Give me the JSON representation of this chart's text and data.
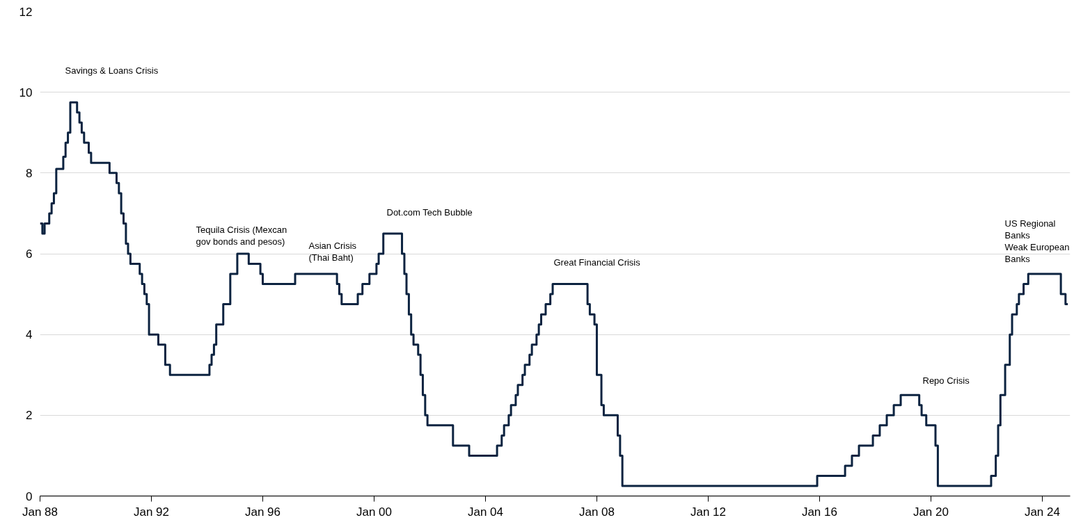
{
  "chart_data": {
    "type": "step",
    "xlim": [
      "1988-01",
      "2025-01"
    ],
    "ylim": [
      0,
      12
    ],
    "xticks": [
      {
        "value": "1988-01",
        "label": "Jan 88"
      },
      {
        "value": "1992-01",
        "label": "Jan 92"
      },
      {
        "value": "1996-01",
        "label": "Jan 96"
      },
      {
        "value": "2000-01",
        "label": "Jan 00"
      },
      {
        "value": "2004-01",
        "label": "Jan 04"
      },
      {
        "value": "2008-01",
        "label": "Jan 08"
      },
      {
        "value": "2012-01",
        "label": "Jan 12"
      },
      {
        "value": "2016-01",
        "label": "Jan 16"
      },
      {
        "value": "2020-01",
        "label": "Jan 20"
      },
      {
        "value": "2024-01",
        "label": "Jan 24"
      }
    ],
    "yticks": [
      0,
      2,
      4,
      6,
      8,
      10,
      12
    ],
    "grid": "y",
    "marker": "none",
    "line_style": "solid",
    "series": [
      {
        "color": "#0c2340",
        "x": [
          "1988-01",
          "1988-02",
          "1988-03",
          "1988-05",
          "1988-06",
          "1988-07",
          "1988-08",
          "1988-11",
          "1988-12",
          "1989-01",
          "1989-02",
          "1989-05",
          "1989-06",
          "1989-07",
          "1989-08",
          "1989-10",
          "1989-11",
          "1989-12",
          "1990-07",
          "1990-10",
          "1990-11",
          "1990-12",
          "1991-01",
          "1991-02",
          "1991-03",
          "1991-04",
          "1991-08",
          "1991-09",
          "1991-10",
          "1991-11",
          "1991-12",
          "1992-04",
          "1992-07",
          "1992-09",
          "1994-02",
          "1994-03",
          "1994-04",
          "1994-05",
          "1994-08",
          "1994-11",
          "1995-02",
          "1995-07",
          "1995-12",
          "1996-01",
          "1997-03",
          "1998-09",
          "1998-10",
          "1998-11",
          "1999-06",
          "1999-08",
          "1999-11",
          "2000-02",
          "2000-03",
          "2000-05",
          "2001-01",
          "2001-02",
          "2001-03",
          "2001-04",
          "2001-05",
          "2001-06",
          "2001-08",
          "2001-09",
          "2001-10",
          "2001-11",
          "2001-12",
          "2002-11",
          "2003-06",
          "2004-06",
          "2004-08",
          "2004-09",
          "2004-11",
          "2004-12",
          "2005-02",
          "2005-03",
          "2005-05",
          "2005-06",
          "2005-08",
          "2005-09",
          "2005-11",
          "2005-12",
          "2006-01",
          "2006-03",
          "2006-05",
          "2006-06",
          "2007-09",
          "2007-10",
          "2007-12",
          "2008-01",
          "2008-03",
          "2008-04",
          "2008-10",
          "2008-11",
          "2008-12",
          "2015-12",
          "2016-12",
          "2017-03",
          "2017-06",
          "2017-12",
          "2018-03",
          "2018-06",
          "2018-09",
          "2018-12",
          "2019-08",
          "2019-09",
          "2019-11",
          "2020-03",
          "2020-04",
          "2022-03",
          "2022-05",
          "2022-06",
          "2022-07",
          "2022-09",
          "2022-11",
          "2022-12",
          "2023-02",
          "2023-03",
          "2023-05",
          "2023-07",
          "2024-09",
          "2024-11",
          "2024-12"
        ],
        "values": [
          6.75,
          6.5,
          6.75,
          7.0,
          7.25,
          7.5,
          8.1,
          8.4,
          8.75,
          9.0,
          9.75,
          9.5,
          9.25,
          9.0,
          8.75,
          8.5,
          8.25,
          8.25,
          8.0,
          7.75,
          7.5,
          7.0,
          6.75,
          6.25,
          6.0,
          5.75,
          5.5,
          5.25,
          5.0,
          4.75,
          4.0,
          3.75,
          3.25,
          3.0,
          3.25,
          3.5,
          3.75,
          4.25,
          4.75,
          5.5,
          6.0,
          5.75,
          5.5,
          5.25,
          5.5,
          5.25,
          5.0,
          4.75,
          5.0,
          5.25,
          5.5,
          5.75,
          6.0,
          6.5,
          6.0,
          5.5,
          5.0,
          4.5,
          4.0,
          3.75,
          3.5,
          3.0,
          2.5,
          2.0,
          1.75,
          1.25,
          1.0,
          1.25,
          1.5,
          1.75,
          2.0,
          2.25,
          2.5,
          2.75,
          3.0,
          3.25,
          3.5,
          3.75,
          4.0,
          4.25,
          4.5,
          4.75,
          5.0,
          5.25,
          4.75,
          4.5,
          4.25,
          3.0,
          2.25,
          2.0,
          1.5,
          1.0,
          0.25,
          0.5,
          0.75,
          1.0,
          1.25,
          1.5,
          1.75,
          2.0,
          2.25,
          2.5,
          2.25,
          2.0,
          1.75,
          1.25,
          0.25,
          0.5,
          1.0,
          1.75,
          2.5,
          3.25,
          4.0,
          4.5,
          4.75,
          5.0,
          5.25,
          5.5,
          5.0,
          4.75,
          4.75
        ]
      }
    ],
    "annotations": [
      "Savings & Loans Crisis",
      "Tequila Crisis (Mexcan\ngov bonds and pesos)",
      "Asian Crisis\n(Thai Baht)",
      "Dot.com Tech Bubble",
      "Great Financial Crisis",
      "Repo Crisis",
      "US Regional\nBanks\nWeak European\nBanks"
    ]
  }
}
